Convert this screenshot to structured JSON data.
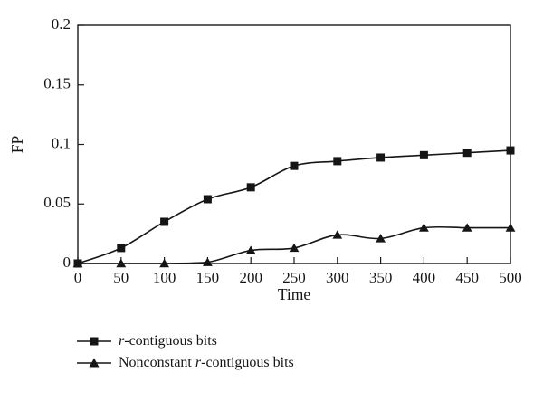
{
  "colors": {
    "background": "#ffffff",
    "axis": "#1a1a1a",
    "series": "#151515",
    "text": "#151515"
  },
  "chart_data": {
    "type": "line",
    "title": "",
    "xlabel": "Time",
    "ylabel": "FP",
    "xlim": [
      0,
      500
    ],
    "ylim": [
      0,
      0.2
    ],
    "grid": false,
    "legend_position": "below-left",
    "x": [
      0,
      50,
      100,
      150,
      200,
      250,
      300,
      350,
      400,
      450,
      500
    ],
    "x_tick_labels": [
      "0",
      "50",
      "100",
      "150",
      "200",
      "250",
      "300",
      "350",
      "400",
      "450",
      "500"
    ],
    "y_ticks": [
      0,
      0.05,
      0.1,
      0.15,
      0.2
    ],
    "y_tick_labels": [
      "0",
      "0.05",
      "0.1",
      "0.15",
      "0.2"
    ],
    "series": [
      {
        "name": "r-contiguous bits",
        "marker": "square",
        "values": [
          0,
          0.013,
          0.035,
          0.054,
          0.064,
          0.082,
          0.086,
          0.089,
          0.091,
          0.093,
          0.095
        ]
      },
      {
        "name": "Nonconstant r-contiguous bits",
        "marker": "triangle",
        "values": [
          0,
          0,
          0,
          0.001,
          0.011,
          0.013,
          0.024,
          0.021,
          0.03,
          0.03,
          0.03
        ]
      }
    ]
  },
  "legend": {
    "items": [
      {
        "marker": "square",
        "pre": "",
        "italic": "r",
        "post": "-contiguous bits"
      },
      {
        "marker": "triangle",
        "pre": "Nonconstant ",
        "italic": "r",
        "post": "-contiguous bits"
      }
    ]
  }
}
